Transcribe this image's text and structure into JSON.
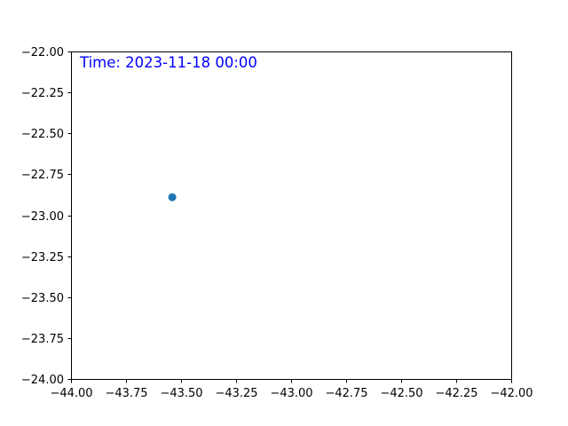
{
  "chart_data": {
    "type": "scatter",
    "title": "",
    "xlabel": "",
    "ylabel": "",
    "xlim": [
      -44.0,
      -42.0
    ],
    "ylim": [
      -24.0,
      -22.0
    ],
    "grid": false,
    "x_ticks": [
      -44.0,
      -43.75,
      -43.5,
      -43.25,
      -43.0,
      -42.75,
      -42.5,
      -42.25,
      -42.0
    ],
    "x_tick_labels": [
      "−44.00",
      "−43.75",
      "−43.50",
      "−43.25",
      "−43.00",
      "−42.75",
      "−42.50",
      "−42.25",
      "−42.00"
    ],
    "y_ticks": [
      -22.0,
      -22.25,
      -22.5,
      -22.75,
      -23.0,
      -23.25,
      -23.5,
      -23.75,
      -24.0
    ],
    "y_tick_labels": [
      "−22.00",
      "−22.25",
      "−22.50",
      "−22.75",
      "−23.00",
      "−23.25",
      "−23.50",
      "−23.75",
      "−24.00"
    ],
    "series": [
      {
        "color": "#1f77b4",
        "points": [
          {
            "x": -43.54,
            "y": -22.89
          }
        ]
      }
    ],
    "annotation": {
      "text": "Time: 2023-11-18 00:00",
      "color": "#0000ff"
    }
  }
}
